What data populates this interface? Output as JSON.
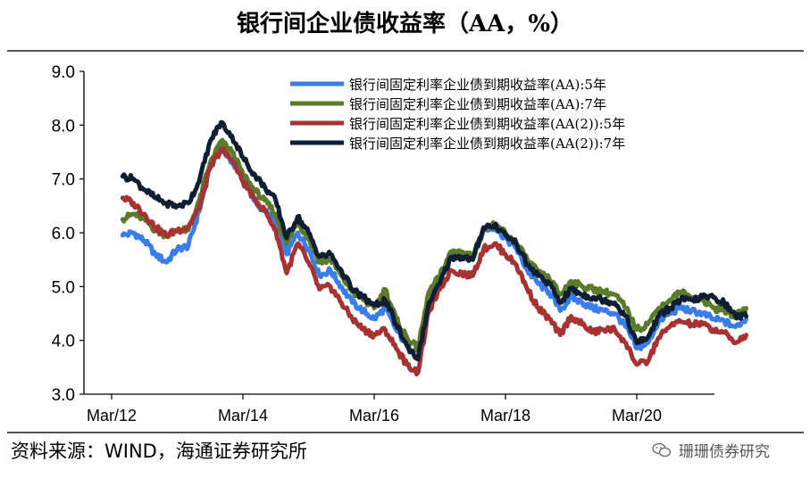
{
  "title": "银行间企业债收益率（AA，%）",
  "source": "资料来源：WIND，海通证券研究所",
  "watermark": "珊珊债券研究",
  "watermark_icon": "wechat-icon",
  "chart_data": {
    "type": "line",
    "title": "银行间企业债收益率（AA，%）",
    "xlabel": "",
    "ylabel": "",
    "ylim": [
      3.0,
      9.0
    ],
    "yticks": [
      "9.0",
      "8.0",
      "7.0",
      "6.0",
      "5.0",
      "4.0",
      "3.0"
    ],
    "xticks": [
      "Mar/12",
      "Mar/14",
      "Mar/16",
      "Mar/18",
      "Mar/20"
    ],
    "xlim": [
      "2012-03",
      "2021-11"
    ],
    "grid": false,
    "legend_position": "top-right",
    "series": [
      {
        "name": "银行间固定利率企业债到期收益率(AA):5年",
        "color": "#3b7de8",
        "points": [
          [
            "2012-05",
            5.95
          ],
          [
            "2012-07",
            6.0
          ],
          [
            "2012-09",
            5.85
          ],
          [
            "2012-11",
            5.6
          ],
          [
            "2013-01",
            5.45
          ],
          [
            "2013-03",
            5.7
          ],
          [
            "2013-05",
            5.75
          ],
          [
            "2013-07",
            6.4
          ],
          [
            "2013-09",
            7.2
          ],
          [
            "2013-11",
            7.6
          ],
          [
            "2014-01",
            7.3
          ],
          [
            "2014-03",
            7.0
          ],
          [
            "2014-05",
            6.6
          ],
          [
            "2014-07",
            6.4
          ],
          [
            "2014-09",
            6.2
          ],
          [
            "2014-11",
            5.6
          ],
          [
            "2015-01",
            6.0
          ],
          [
            "2015-03",
            5.7
          ],
          [
            "2015-05",
            5.2
          ],
          [
            "2015-07",
            5.3
          ],
          [
            "2015-09",
            5.0
          ],
          [
            "2015-11",
            4.7
          ],
          [
            "2016-01",
            4.55
          ],
          [
            "2016-03",
            4.4
          ],
          [
            "2016-05",
            4.6
          ],
          [
            "2016-07",
            4.2
          ],
          [
            "2016-09",
            3.9
          ],
          [
            "2016-11",
            3.8
          ],
          [
            "2017-01",
            4.8
          ],
          [
            "2017-03",
            5.1
          ],
          [
            "2017-05",
            5.6
          ],
          [
            "2017-07",
            5.6
          ],
          [
            "2017-09",
            5.5
          ],
          [
            "2017-11",
            6.05
          ],
          [
            "2018-01",
            6.1
          ],
          [
            "2018-03",
            5.9
          ],
          [
            "2018-05",
            5.7
          ],
          [
            "2018-07",
            5.3
          ],
          [
            "2018-09",
            5.05
          ],
          [
            "2018-11",
            4.9
          ],
          [
            "2019-01",
            4.55
          ],
          [
            "2019-03",
            4.8
          ],
          [
            "2019-05",
            4.7
          ],
          [
            "2019-07",
            4.6
          ],
          [
            "2019-09",
            4.55
          ],
          [
            "2019-11",
            4.5
          ],
          [
            "2020-01",
            4.25
          ],
          [
            "2020-03",
            3.85
          ],
          [
            "2020-05",
            3.95
          ],
          [
            "2020-07",
            4.35
          ],
          [
            "2020-09",
            4.5
          ],
          [
            "2020-11",
            4.6
          ],
          [
            "2021-01",
            4.55
          ],
          [
            "2021-03",
            4.5
          ],
          [
            "2021-05",
            4.4
          ],
          [
            "2021-07",
            4.35
          ],
          [
            "2021-09",
            4.25
          ],
          [
            "2021-11",
            4.4
          ]
        ]
      },
      {
        "name": "银行间固定利率企业债到期收益率(AA):7年",
        "color": "#5b7a2a",
        "points": [
          [
            "2012-05",
            6.25
          ],
          [
            "2012-07",
            6.35
          ],
          [
            "2012-09",
            6.25
          ],
          [
            "2012-11",
            6.05
          ],
          [
            "2013-01",
            5.95
          ],
          [
            "2013-03",
            6.05
          ],
          [
            "2013-05",
            6.05
          ],
          [
            "2013-07",
            6.6
          ],
          [
            "2013-09",
            7.3
          ],
          [
            "2013-11",
            7.7
          ],
          [
            "2014-01",
            7.5
          ],
          [
            "2014-03",
            7.1
          ],
          [
            "2014-05",
            6.8
          ],
          [
            "2014-07",
            6.6
          ],
          [
            "2014-09",
            6.35
          ],
          [
            "2014-11",
            5.8
          ],
          [
            "2015-01",
            6.2
          ],
          [
            "2015-03",
            5.9
          ],
          [
            "2015-05",
            5.45
          ],
          [
            "2015-07",
            5.5
          ],
          [
            "2015-09",
            5.2
          ],
          [
            "2015-11",
            4.9
          ],
          [
            "2016-01",
            4.75
          ],
          [
            "2016-03",
            4.6
          ],
          [
            "2016-05",
            4.95
          ],
          [
            "2016-07",
            4.4
          ],
          [
            "2016-09",
            4.05
          ],
          [
            "2016-11",
            3.85
          ],
          [
            "2017-01",
            4.9
          ],
          [
            "2017-03",
            5.2
          ],
          [
            "2017-05",
            5.65
          ],
          [
            "2017-07",
            5.65
          ],
          [
            "2017-09",
            5.55
          ],
          [
            "2017-11",
            6.05
          ],
          [
            "2018-01",
            6.15
          ],
          [
            "2018-03",
            6.0
          ],
          [
            "2018-05",
            5.8
          ],
          [
            "2018-07",
            5.5
          ],
          [
            "2018-09",
            5.25
          ],
          [
            "2018-11",
            5.15
          ],
          [
            "2019-01",
            4.85
          ],
          [
            "2019-03",
            5.1
          ],
          [
            "2019-05",
            5.0
          ],
          [
            "2019-07",
            4.95
          ],
          [
            "2019-09",
            4.9
          ],
          [
            "2019-11",
            4.85
          ],
          [
            "2020-01",
            4.6
          ],
          [
            "2020-03",
            4.2
          ],
          [
            "2020-05",
            4.3
          ],
          [
            "2020-07",
            4.6
          ],
          [
            "2020-09",
            4.75
          ],
          [
            "2020-11",
            4.9
          ],
          [
            "2021-01",
            4.8
          ],
          [
            "2021-03",
            4.75
          ],
          [
            "2021-05",
            4.6
          ],
          [
            "2021-07",
            4.55
          ],
          [
            "2021-09",
            4.45
          ],
          [
            "2021-11",
            4.6
          ]
        ]
      },
      {
        "name": "银行间固定利率企业债到期收益率(AA(2)):5年",
        "color": "#a83232",
        "points": [
          [
            "2012-05",
            6.65
          ],
          [
            "2012-07",
            6.55
          ],
          [
            "2012-09",
            6.35
          ],
          [
            "2012-11",
            6.1
          ],
          [
            "2013-01",
            5.95
          ],
          [
            "2013-03",
            6.05
          ],
          [
            "2013-05",
            6.1
          ],
          [
            "2013-07",
            6.45
          ],
          [
            "2013-09",
            7.2
          ],
          [
            "2013-11",
            7.55
          ],
          [
            "2014-01",
            7.35
          ],
          [
            "2014-03",
            6.95
          ],
          [
            "2014-05",
            6.65
          ],
          [
            "2014-07",
            6.4
          ],
          [
            "2014-09",
            6.05
          ],
          [
            "2014-11",
            5.25
          ],
          [
            "2015-01",
            5.8
          ],
          [
            "2015-03",
            5.45
          ],
          [
            "2015-05",
            4.95
          ],
          [
            "2015-07",
            5.0
          ],
          [
            "2015-09",
            4.7
          ],
          [
            "2015-11",
            4.4
          ],
          [
            "2016-01",
            4.2
          ],
          [
            "2016-03",
            4.1
          ],
          [
            "2016-05",
            4.2
          ],
          [
            "2016-07",
            3.85
          ],
          [
            "2016-09",
            3.55
          ],
          [
            "2016-11",
            3.4
          ],
          [
            "2017-01",
            4.55
          ],
          [
            "2017-03",
            4.95
          ],
          [
            "2017-05",
            5.3
          ],
          [
            "2017-07",
            5.25
          ],
          [
            "2017-09",
            5.2
          ],
          [
            "2017-11",
            5.7
          ],
          [
            "2018-01",
            5.8
          ],
          [
            "2018-03",
            5.6
          ],
          [
            "2018-05",
            5.4
          ],
          [
            "2018-07",
            4.95
          ],
          [
            "2018-09",
            4.6
          ],
          [
            "2018-11",
            4.4
          ],
          [
            "2019-01",
            4.1
          ],
          [
            "2019-03",
            4.45
          ],
          [
            "2019-05",
            4.3
          ],
          [
            "2019-07",
            4.15
          ],
          [
            "2019-09",
            4.2
          ],
          [
            "2019-11",
            4.2
          ],
          [
            "2020-01",
            3.95
          ],
          [
            "2020-03",
            3.55
          ],
          [
            "2020-05",
            3.6
          ],
          [
            "2020-07",
            4.05
          ],
          [
            "2020-09",
            4.25
          ],
          [
            "2020-11",
            4.35
          ],
          [
            "2021-01",
            4.3
          ],
          [
            "2021-03",
            4.3
          ],
          [
            "2021-05",
            4.2
          ],
          [
            "2021-07",
            4.15
          ],
          [
            "2021-09",
            3.95
          ],
          [
            "2021-11",
            4.1
          ]
        ]
      },
      {
        "name": "银行间固定利率企业债到期收益率(AA(2)):7年",
        "color": "#0f1f33",
        "points": [
          [
            "2012-05",
            7.05
          ],
          [
            "2012-07",
            7.0
          ],
          [
            "2012-09",
            6.8
          ],
          [
            "2012-11",
            6.65
          ],
          [
            "2013-01",
            6.55
          ],
          [
            "2013-03",
            6.5
          ],
          [
            "2013-05",
            6.55
          ],
          [
            "2013-07",
            6.95
          ],
          [
            "2013-09",
            7.7
          ],
          [
            "2013-11",
            8.05
          ],
          [
            "2014-01",
            7.8
          ],
          [
            "2014-03",
            7.4
          ],
          [
            "2014-05",
            7.1
          ],
          [
            "2014-07",
            6.85
          ],
          [
            "2014-09",
            6.6
          ],
          [
            "2014-11",
            5.9
          ],
          [
            "2015-01",
            6.3
          ],
          [
            "2015-03",
            6.0
          ],
          [
            "2015-05",
            5.55
          ],
          [
            "2015-07",
            5.6
          ],
          [
            "2015-09",
            5.3
          ],
          [
            "2015-11",
            4.95
          ],
          [
            "2016-01",
            4.8
          ],
          [
            "2016-03",
            4.65
          ],
          [
            "2016-05",
            4.75
          ],
          [
            "2016-07",
            4.3
          ],
          [
            "2016-09",
            3.9
          ],
          [
            "2016-11",
            3.65
          ],
          [
            "2017-01",
            4.7
          ],
          [
            "2017-03",
            5.05
          ],
          [
            "2017-05",
            5.55
          ],
          [
            "2017-07",
            5.55
          ],
          [
            "2017-09",
            5.5
          ],
          [
            "2017-11",
            6.1
          ],
          [
            "2018-01",
            6.15
          ],
          [
            "2018-03",
            5.95
          ],
          [
            "2018-05",
            5.8
          ],
          [
            "2018-07",
            5.4
          ],
          [
            "2018-09",
            5.2
          ],
          [
            "2018-11",
            5.05
          ],
          [
            "2019-01",
            4.7
          ],
          [
            "2019-03",
            4.95
          ],
          [
            "2019-05",
            4.85
          ],
          [
            "2019-07",
            4.8
          ],
          [
            "2019-09",
            4.75
          ],
          [
            "2019-11",
            4.7
          ],
          [
            "2020-01",
            4.45
          ],
          [
            "2020-03",
            3.95
          ],
          [
            "2020-05",
            4.05
          ],
          [
            "2020-07",
            4.45
          ],
          [
            "2020-09",
            4.6
          ],
          [
            "2020-11",
            4.75
          ],
          [
            "2021-01",
            4.75
          ],
          [
            "2021-03",
            4.8
          ],
          [
            "2021-05",
            4.8
          ],
          [
            "2021-07",
            4.7
          ],
          [
            "2021-09",
            4.45
          ],
          [
            "2021-11",
            4.45
          ]
        ]
      }
    ]
  }
}
